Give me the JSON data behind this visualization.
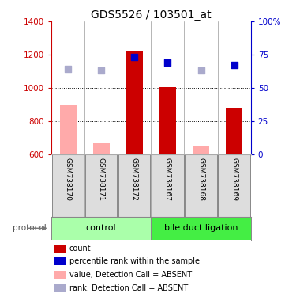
{
  "title": "GDS5526 / 103501_at",
  "samples": [
    "GSM738170",
    "GSM738171",
    "GSM738172",
    "GSM738167",
    "GSM738168",
    "GSM738169"
  ],
  "bar_values": [
    null,
    null,
    1220,
    1005,
    null,
    875
  ],
  "bar_absent_values": [
    900,
    665,
    null,
    null,
    650,
    null
  ],
  "dot_values": [
    null,
    null,
    73,
    69,
    null,
    67
  ],
  "dot_absent_values": [
    64,
    63,
    null,
    null,
    63,
    null
  ],
  "ylim_left": [
    600,
    1400
  ],
  "ylim_right": [
    0,
    100
  ],
  "yticks_left": [
    600,
    800,
    1000,
    1200,
    1400
  ],
  "yticks_right": [
    0,
    25,
    50,
    75,
    100
  ],
  "bar_color": "#cc0000",
  "bar_absent_color": "#ffaaaa",
  "dot_color": "#0000cc",
  "dot_absent_color": "#aaaacc",
  "legend_items": [
    {
      "label": "count",
      "color": "#cc0000"
    },
    {
      "label": "percentile rank within the sample",
      "color": "#0000cc"
    },
    {
      "label": "value, Detection Call = ABSENT",
      "color": "#ffaaaa"
    },
    {
      "label": "rank, Detection Call = ABSENT",
      "color": "#aaaacc"
    }
  ],
  "background_color": "#ffffff",
  "title_fontsize": 10,
  "axis_color_left": "#cc0000",
  "axis_color_right": "#0000cc",
  "ctrl_color": "#aaffaa",
  "bdl_color": "#44ee44",
  "sample_box_color": "#dddddd"
}
